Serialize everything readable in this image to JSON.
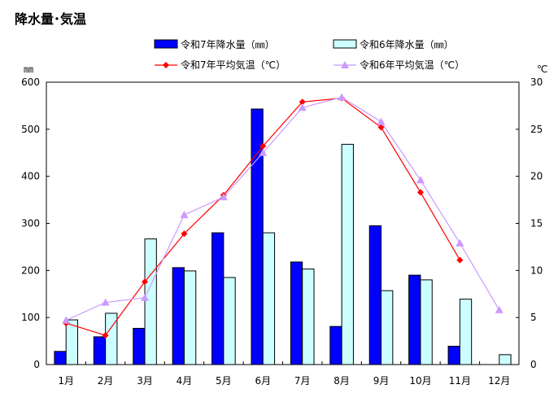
{
  "chart_data": {
    "type": "bar+line",
    "title": "降水量･気温",
    "categories": [
      "1月",
      "2月",
      "3月",
      "4月",
      "5月",
      "6月",
      "7月",
      "8月",
      "9月",
      "10月",
      "11月",
      "12月"
    ],
    "y_left": {
      "unit_label": "㎜",
      "lim": [
        0,
        600
      ],
      "ticks": [
        0,
        100,
        200,
        300,
        400,
        500,
        600
      ]
    },
    "y_right": {
      "unit_label": "℃",
      "lim": [
        0,
        30
      ],
      "ticks": [
        0,
        5,
        10,
        15,
        20,
        25,
        30
      ]
    },
    "grid": false,
    "legend_position": "top",
    "bar_series": [
      {
        "name": "令和7年降水量（㎜）",
        "color": "#0000ff",
        "values": [
          28,
          59,
          77,
          206,
          280,
          543,
          218,
          81,
          295,
          190,
          39,
          null
        ]
      },
      {
        "name": "令和6年降水量（㎜）",
        "color": "#ccffff",
        "values": [
          95,
          109,
          267,
          199,
          185,
          280,
          203,
          468,
          157,
          180,
          139,
          21
        ]
      }
    ],
    "line_series": [
      {
        "name": "令和7年平均気温（℃）",
        "color": "#ff0000",
        "marker": "diamond",
        "values": [
          4.4,
          3.1,
          8.8,
          13.9,
          18.0,
          23.2,
          27.9,
          28.3,
          25.2,
          18.3,
          11.1,
          null
        ]
      },
      {
        "name": "令和6年平均気温（℃）",
        "color": "#cc99ff",
        "marker": "triangle",
        "values": [
          4.7,
          6.6,
          7.1,
          15.9,
          17.8,
          22.5,
          27.3,
          28.4,
          25.8,
          19.6,
          12.9,
          5.8
        ]
      }
    ]
  }
}
